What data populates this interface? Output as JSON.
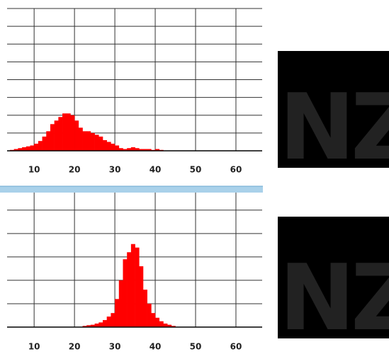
{
  "chart_data": [
    {
      "type": "histogram",
      "color": "#ff0000",
      "grid": true,
      "xlim": [
        3.3,
        66.5
      ],
      "xticks": [
        10,
        20,
        30,
        40,
        50,
        60
      ],
      "ylim": [
        0,
        8
      ],
      "yticks": [
        0,
        1,
        2,
        3,
        4,
        5,
        6,
        7,
        8
      ],
      "bins": [
        4,
        5,
        6,
        7,
        8,
        9,
        10,
        11,
        12,
        13,
        14,
        15,
        16,
        17,
        18,
        19,
        20,
        21,
        22,
        23,
        24,
        25,
        26,
        27,
        28,
        29,
        30,
        31,
        32,
        33,
        34,
        35,
        36,
        37,
        38,
        39,
        40,
        41,
        42
      ],
      "values": [
        0.05,
        0.1,
        0.15,
        0.2,
        0.25,
        0.3,
        0.4,
        0.55,
        0.8,
        1.1,
        1.5,
        1.7,
        1.9,
        2.1,
        2.1,
        2.0,
        1.7,
        1.3,
        1.1,
        1.1,
        1.0,
        0.9,
        0.8,
        0.6,
        0.5,
        0.4,
        0.3,
        0.15,
        0.1,
        0.15,
        0.2,
        0.15,
        0.1,
        0.1,
        0.1,
        0.05,
        0.1,
        0.05
      ]
    },
    {
      "type": "histogram",
      "color": "#ff0000",
      "grid": true,
      "xlim": [
        3.3,
        66.5
      ],
      "xticks": [
        10,
        20,
        30,
        40,
        50,
        60
      ],
      "ylim": [
        0,
        5.75
      ],
      "yticks": [
        0,
        1,
        2,
        3,
        4,
        5
      ],
      "bins": [
        22,
        23,
        24,
        25,
        26,
        27,
        28,
        29,
        30,
        31,
        32,
        33,
        34,
        35,
        36,
        37,
        38,
        39,
        40,
        41,
        42,
        43,
        44,
        45
      ],
      "values": [
        0.05,
        0.08,
        0.1,
        0.15,
        0.2,
        0.3,
        0.45,
        0.6,
        1.2,
        2.0,
        2.9,
        3.2,
        3.55,
        3.4,
        2.6,
        1.6,
        1.0,
        0.6,
        0.4,
        0.25,
        0.15,
        0.1,
        0.05
      ]
    }
  ],
  "images": [
    "NZ",
    "NZ"
  ]
}
